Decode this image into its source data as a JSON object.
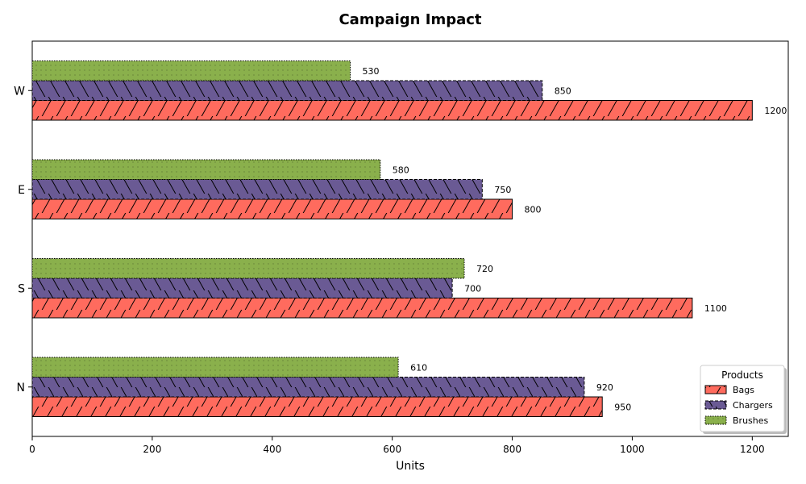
{
  "chart_data": {
    "type": "bar",
    "orientation": "horizontal",
    "title": "Campaign Impact",
    "xlabel": "Units",
    "ylabel": "",
    "xlim": [
      0,
      1260
    ],
    "xticks": [
      0,
      200,
      400,
      600,
      800,
      1000,
      1200
    ],
    "categories": [
      "N",
      "S",
      "E",
      "W"
    ],
    "series": [
      {
        "name": "Bags",
        "values": [
          950,
          1100,
          800,
          1200
        ],
        "color": "#ff6b5e",
        "hatch": "forward-diagonal",
        "edge_style": "solid"
      },
      {
        "name": "Chargers",
        "values": [
          920,
          700,
          750,
          850
        ],
        "color": "#6a5a94",
        "hatch": "back-diagonal",
        "edge_style": "dashed"
      },
      {
        "name": "Brushes",
        "values": [
          610,
          720,
          580,
          530
        ],
        "color": "#8ab04c",
        "hatch": "dots",
        "edge_style": "dotted"
      }
    ],
    "legend": {
      "title": "Products",
      "position": "bottom-right"
    },
    "grid": false
  }
}
